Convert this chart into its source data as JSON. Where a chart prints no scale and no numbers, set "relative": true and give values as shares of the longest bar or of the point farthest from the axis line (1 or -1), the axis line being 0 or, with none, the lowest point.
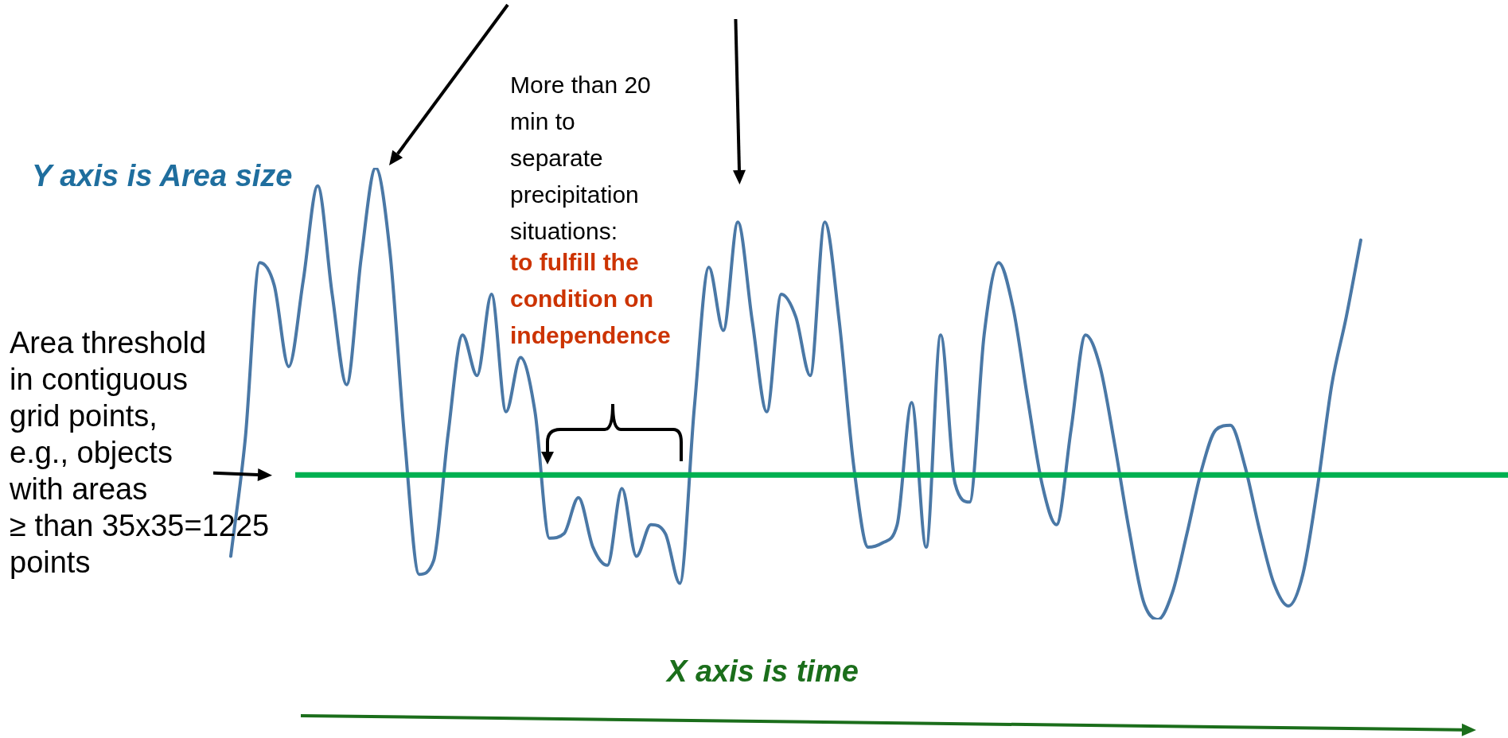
{
  "chart_data": {
    "type": "line",
    "relative": true,
    "legend": false,
    "marker": "none",
    "categories": [
      null,
      null,
      null,
      null,
      null,
      null,
      null,
      null,
      null,
      null,
      null,
      null,
      null,
      null,
      null,
      null,
      null,
      null,
      null,
      null,
      null,
      null,
      null,
      null,
      null,
      null,
      null,
      null,
      null,
      null,
      null,
      null,
      null,
      null,
      null,
      null,
      null,
      null,
      null,
      null,
      null,
      null,
      null,
      null,
      null,
      null,
      null,
      null,
      null,
      null,
      null,
      null,
      null,
      null,
      null,
      null,
      null,
      null,
      null,
      null,
      null,
      null,
      null,
      null,
      null,
      null,
      null,
      null,
      null,
      null,
      null,
      null,
      null,
      null,
      null,
      null,
      null,
      null,
      null
    ],
    "series": [
      {
        "color": "#4a78a6",
        "values": [
          0.14,
          0.4,
          0.79,
          0.74,
          0.56,
          0.75,
          0.96,
          0.72,
          0.52,
          0.8,
          1.0,
          0.81,
          0.4,
          0.1,
          0.13,
          0.41,
          0.63,
          0.54,
          0.72,
          0.46,
          0.58,
          0.46,
          0.18,
          0.19,
          0.27,
          0.16,
          0.12,
          0.29,
          0.14,
          0.21,
          0.19,
          0.08,
          0.47,
          0.78,
          0.64,
          0.88,
          0.66,
          0.46,
          0.72,
          0.67,
          0.54,
          0.88,
          0.66,
          0.34,
          0.16,
          0.17,
          0.21,
          0.48,
          0.16,
          0.63,
          0.3,
          0.26,
          0.63,
          0.79,
          0.69,
          0.49,
          0.3,
          0.21,
          0.42,
          0.63,
          0.56,
          0.39,
          0.2,
          0.04,
          0,
          0.06,
          0.19,
          0.33,
          0.42,
          0.43,
          0.34,
          0.2,
          0.08,
          0.03,
          0.1,
          0.29,
          0.52,
          0.67,
          0.84
        ]
      }
    ],
    "ref_lines": [
      {
        "axis": "y",
        "value": 0.32,
        "color": "#00b050"
      }
    ],
    "ylabel": "Y axis is Area size",
    "xlabel": "X axis is time",
    "annotations": [
      "Area threshold\nin contiguous\ngrid points,\ne.g., objects\nwith areas\n≥ than 35x35=1225\npoints",
      "More than 20\nmin to\nseparate\nprecipitation\nsituations:",
      "to fulfill the\ncondition on\nindependence"
    ]
  }
}
